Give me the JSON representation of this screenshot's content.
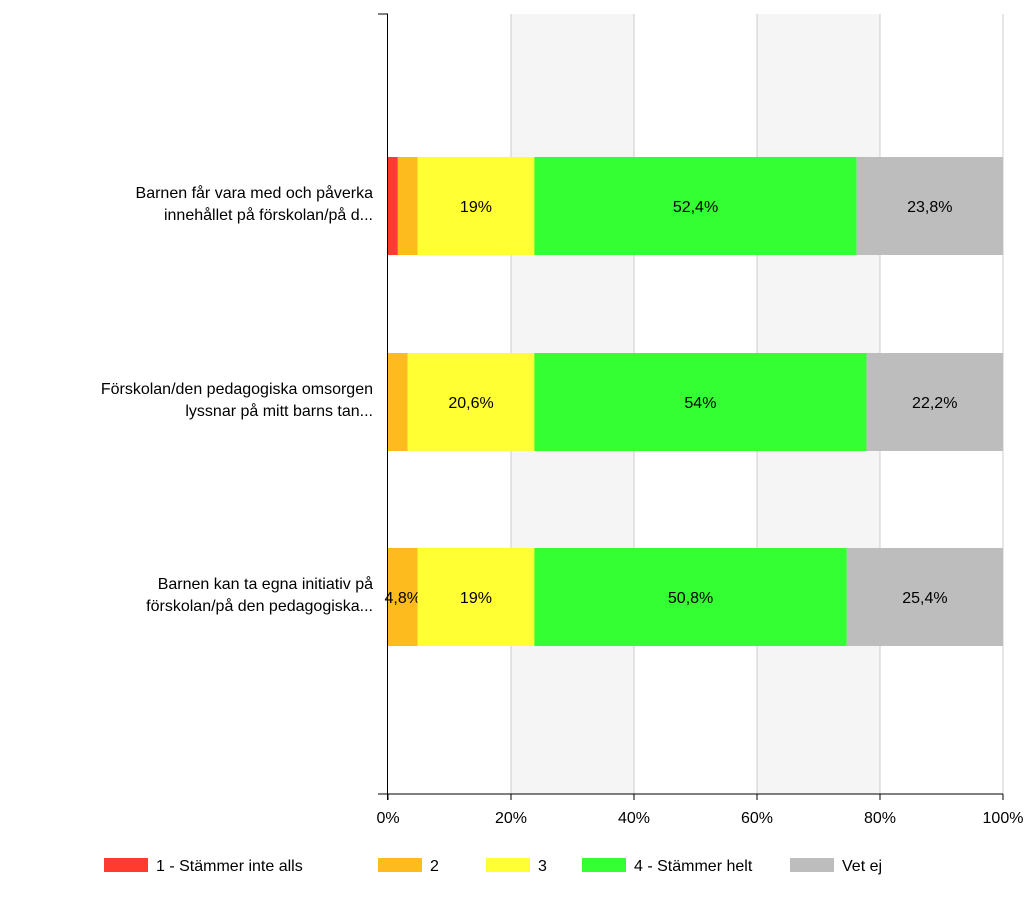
{
  "chart_data": {
    "type": "bar",
    "orientation": "horizontal",
    "stacked": true,
    "categories": [
      [
        "Barnen får vara med och påverka",
        "innehållet på förskolan/på d..."
      ],
      [
        "Förskolan/den pedagogiska omsorgen",
        "lyssnar på mitt barns tan..."
      ],
      [
        "Barnen kan ta egna initiativ på",
        "förskolan/på den pedagogiska..."
      ]
    ],
    "series": [
      {
        "name": "1 - Stämmer inte alls",
        "color": "#ff3b2f",
        "values": [
          1.6,
          0,
          0
        ],
        "labels": [
          "",
          "",
          ""
        ]
      },
      {
        "name": "2",
        "color": "#fdbb1d",
        "values": [
          3.2,
          3.2,
          4.8
        ],
        "labels": [
          "",
          "",
          "4,8%"
        ]
      },
      {
        "name": "3",
        "color": "#ffff33",
        "values": [
          19,
          20.6,
          19
        ],
        "labels": [
          "19%",
          "20,6%",
          "19%"
        ]
      },
      {
        "name": "4 - Stämmer helt",
        "color": "#33ff33",
        "values": [
          52.4,
          54,
          50.8
        ],
        "labels": [
          "52,4%",
          "54%",
          "50,8%"
        ]
      },
      {
        "name": "Vet ej",
        "color": "#bdbdbd",
        "values": [
          23.8,
          22.2,
          25.4
        ],
        "labels": [
          "23,8%",
          "22,2%",
          "25,4%"
        ]
      }
    ],
    "xlim": [
      0,
      100
    ],
    "x_ticks": [
      "0%",
      "20%",
      "40%",
      "60%",
      "80%",
      "100%"
    ],
    "grid": true,
    "legend_position": "bottom"
  }
}
